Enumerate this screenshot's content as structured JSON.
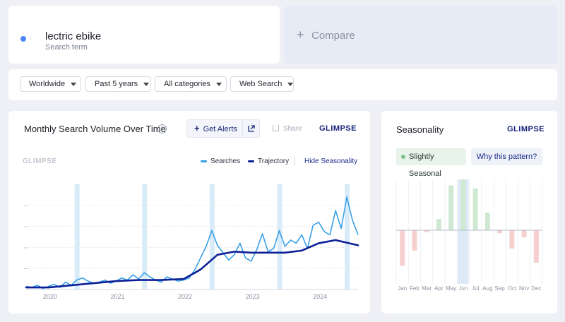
{
  "search_term": {
    "name": "lectric ebike",
    "subtitle": "Search term",
    "color": "#4a86f7"
  },
  "compare": {
    "label": "Compare"
  },
  "filters": [
    "Worldwide",
    "Past 5 years",
    "All categories",
    "Web Search"
  ],
  "main_chart": {
    "title": "Monthly Search Volume Over Time",
    "alerts_label": "Get Alerts",
    "share_label": "Share",
    "logo": "GLIMPSE",
    "watermark": "GLIMPSE",
    "legend_searches": "Searches",
    "legend_trajectory": "Trajectory",
    "hide_seasonality": "Hide Seasonality",
    "y_tick_labels": [
      "...",
      "...",
      "...",
      "..."
    ],
    "x_tick_labels": [
      "2020",
      "2021",
      "2022",
      "2023",
      "2024"
    ],
    "colors": {
      "searches": "#3aa0e6",
      "trajectory": "#0c1f96",
      "season_band": "#d7ebf8"
    }
  },
  "seasonality": {
    "title": "Seasonality",
    "logo": "GLIMPSE",
    "badge": "Slightly Seasonal",
    "why_label": "Why this pattern?",
    "colors": {
      "positive": "#cfe8d1",
      "negative": "#f6cfcf",
      "highlight": "#dde9f6"
    }
  },
  "chart_data": [
    {
      "type": "line",
      "xlabel": "",
      "ylabel": "",
      "x_ticks": [
        "2020",
        "2021",
        "2022",
        "2023",
        "2024"
      ],
      "x_range": [
        "2019-09",
        "2024-08"
      ],
      "y_range": [
        0,
        100
      ],
      "grid": true,
      "legend": "top-right",
      "series": [
        {
          "name": "Searches",
          "x": [
            "2019-09",
            "2019-10",
            "2019-11",
            "2019-12",
            "2020-01",
            "2020-02",
            "2020-03",
            "2020-04",
            "2020-05",
            "2020-06",
            "2020-07",
            "2020-08",
            "2020-09",
            "2020-10",
            "2020-11",
            "2020-12",
            "2021-01",
            "2021-02",
            "2021-03",
            "2021-04",
            "2021-05",
            "2021-06",
            "2021-07",
            "2021-08",
            "2021-09",
            "2021-10",
            "2021-11",
            "2021-12",
            "2022-01",
            "2022-02",
            "2022-03",
            "2022-04",
            "2022-05",
            "2022-06",
            "2022-07",
            "2022-08",
            "2022-09",
            "2022-10",
            "2022-11",
            "2022-12",
            "2023-01",
            "2023-02",
            "2023-03",
            "2023-04",
            "2023-05",
            "2023-06",
            "2023-07",
            "2023-08",
            "2023-09",
            "2023-10",
            "2023-11",
            "2023-12",
            "2024-01",
            "2024-02",
            "2024-03",
            "2024-04",
            "2024-05",
            "2024-06",
            "2024-07",
            "2024-08"
          ],
          "values": [
            3,
            2,
            4,
            1,
            3,
            5,
            2,
            7,
            4,
            9,
            11,
            8,
            6,
            7,
            9,
            6,
            8,
            11,
            9,
            14,
            10,
            16,
            12,
            9,
            7,
            12,
            10,
            8,
            9,
            11,
            19,
            30,
            41,
            56,
            42,
            35,
            28,
            33,
            44,
            30,
            27,
            38,
            53,
            36,
            39,
            56,
            41,
            47,
            44,
            52,
            39,
            61,
            64,
            55,
            52,
            75,
            58,
            88,
            66,
            52
          ]
        },
        {
          "name": "Trajectory",
          "x": [
            "2019-09",
            "2020-01",
            "2020-05",
            "2020-09",
            "2021-01",
            "2021-05",
            "2021-09",
            "2022-01",
            "2022-04",
            "2022-07",
            "2022-10",
            "2023-01",
            "2023-04",
            "2023-07",
            "2023-10",
            "2024-01",
            "2024-04",
            "2024-08"
          ],
          "values": [
            2,
            2,
            4,
            6,
            8,
            9,
            9,
            10,
            19,
            33,
            36,
            35,
            35,
            35,
            37,
            44,
            47,
            42
          ]
        }
      ]
    },
    {
      "type": "bar",
      "categories": [
        "Jan",
        "Feb",
        "Mar",
        "Apr",
        "May",
        "Jun",
        "Jul",
        "Aug",
        "Sep",
        "Oct",
        "Nov",
        "Dec"
      ],
      "values": [
        -35,
        -20,
        -2,
        11,
        44,
        50,
        41,
        17,
        -3,
        -18,
        -7,
        -32
      ],
      "ylim": [
        -50,
        50
      ],
      "highlight": "Jun"
    }
  ]
}
